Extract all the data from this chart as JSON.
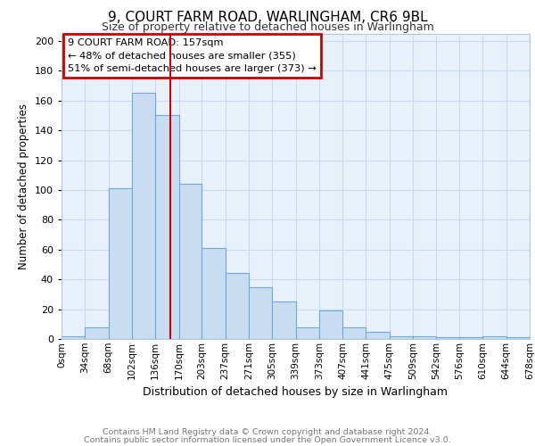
{
  "title": "9, COURT FARM ROAD, WARLINGHAM, CR6 9BL",
  "subtitle": "Size of property relative to detached houses in Warlingham",
  "xlabel": "Distribution of detached houses by size in Warlingham",
  "ylabel": "Number of detached properties",
  "bin_edges": [
    0,
    34,
    68,
    102,
    136,
    170,
    203,
    237,
    271,
    305,
    339,
    373,
    407,
    441,
    475,
    509,
    542,
    576,
    610,
    644,
    678
  ],
  "bar_heights": [
    2,
    8,
    101,
    165,
    150,
    104,
    61,
    44,
    35,
    25,
    8,
    19,
    8,
    5,
    2,
    2,
    1,
    1,
    2,
    1
  ],
  "bar_color": "#c9ddf2",
  "bar_edge_color": "#6aaad4",
  "grid_color": "#c8daf0",
  "background_color": "#e8f0fa",
  "red_line_x": 157,
  "annotation_line1": "9 COURT FARM ROAD: 157sqm",
  "annotation_line2": "← 48% of detached houses are smaller (355)",
  "annotation_line3": "51% of semi-detached houses are larger (373) →",
  "annotation_box_color": "#ffffff",
  "annotation_box_edge_color": "#cc0000",
  "footer_line1": "Contains HM Land Registry data © Crown copyright and database right 2024.",
  "footer_line2": "Contains public sector information licensed under the Open Government Licence v3.0.",
  "ylim": [
    0,
    205
  ],
  "yticks": [
    0,
    20,
    40,
    60,
    80,
    100,
    120,
    140,
    160,
    180,
    200
  ],
  "x_tick_labels": [
    "0sqm",
    "34sqm",
    "68sqm",
    "102sqm",
    "136sqm",
    "170sqm",
    "203sqm",
    "237sqm",
    "271sqm",
    "305sqm",
    "339sqm",
    "373sqm",
    "407sqm",
    "441sqm",
    "475sqm",
    "509sqm",
    "542sqm",
    "576sqm",
    "610sqm",
    "644sqm",
    "678sqm"
  ]
}
